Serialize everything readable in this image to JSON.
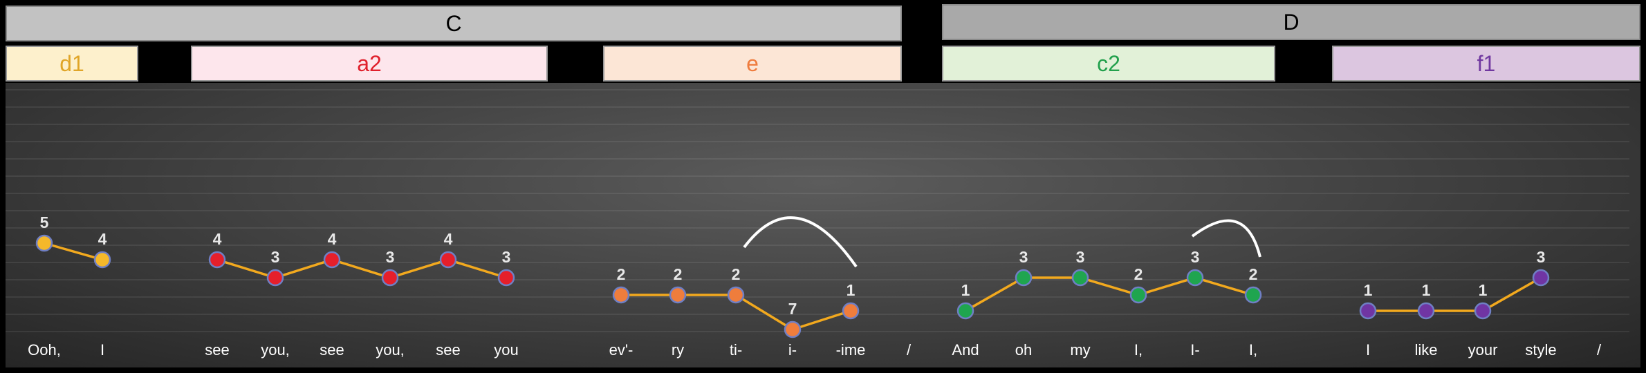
{
  "chords": [
    {
      "label": "C",
      "fill": "#c2c2c2"
    },
    {
      "label": "D",
      "fill": "#a9a9a9"
    }
  ],
  "keys": [
    {
      "label": "d1",
      "fill": "#fdf0cc",
      "text": "#e0a528"
    },
    {
      "label": "a2",
      "fill": "#fde6ec",
      "text": "#e0202c"
    },
    {
      "label": "e",
      "fill": "#fce6d6",
      "text": "#ef7c3e"
    },
    {
      "label": "c2",
      "fill": "#e2f1d8",
      "text": "#22a04c"
    },
    {
      "label": "f1",
      "fill": "#dcc6e0",
      "text": "#7038a0"
    }
  ],
  "line_color": "#f2a91e",
  "groups": [
    {
      "color": "#f5b82a",
      "notes": [
        {
          "level": 5,
          "lyric": "Ooh,"
        },
        {
          "level": 4,
          "lyric": "I"
        }
      ]
    },
    {
      "color": "#e51f2b",
      "notes": [
        {
          "level": 4,
          "lyric": "see"
        },
        {
          "level": 3,
          "lyric": "you,"
        },
        {
          "level": 4,
          "lyric": "see"
        },
        {
          "level": 3,
          "lyric": "you,"
        },
        {
          "level": 4,
          "lyric": "see"
        },
        {
          "level": 3,
          "lyric": "you"
        }
      ]
    },
    {
      "color": "#ef7d3c",
      "notes": [
        {
          "level": 2,
          "lyric": "ev'-"
        },
        {
          "level": 2,
          "lyric": "ry"
        },
        {
          "level": 2,
          "lyric": "ti-"
        },
        {
          "level": 7,
          "lyric": "i-"
        },
        {
          "level": 1,
          "lyric": "-ime"
        }
      ]
    },
    {
      "color": "#1fa54f",
      "notes": [
        {
          "level": 1,
          "lyric": "And"
        },
        {
          "level": 3,
          "lyric": "oh"
        },
        {
          "level": 3,
          "lyric": "my"
        },
        {
          "level": 2,
          "lyric": "I,"
        },
        {
          "level": 3,
          "lyric": "I-"
        },
        {
          "level": 2,
          "lyric": "I,"
        }
      ]
    },
    {
      "color": "#7035a3",
      "notes": [
        {
          "level": 1,
          "lyric": "I"
        },
        {
          "level": 1,
          "lyric": "like"
        },
        {
          "level": 1,
          "lyric": "your"
        },
        {
          "level": 3,
          "lyric": "style"
        }
      ]
    }
  ],
  "separators": [
    "/",
    "/"
  ]
}
